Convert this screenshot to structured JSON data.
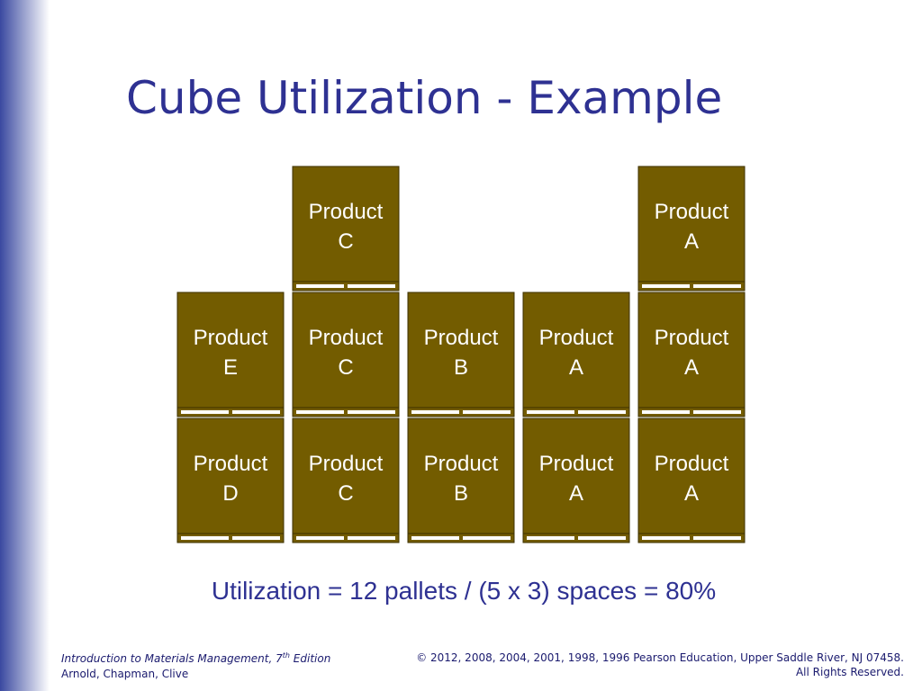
{
  "title": "Cube Utilization - Example",
  "columns": [
    {
      "stack": [
        [
          "Product",
          "D"
        ],
        [
          "Product",
          "E"
        ]
      ]
    },
    {
      "stack": [
        [
          "Product",
          "C"
        ],
        [
          "Product",
          "C"
        ],
        [
          "Product",
          "C"
        ]
      ]
    },
    {
      "stack": [
        [
          "Product",
          "B"
        ],
        [
          "Product",
          "B"
        ]
      ]
    },
    {
      "stack": [
        [
          "Product",
          "A"
        ],
        [
          "Product",
          "A"
        ]
      ]
    },
    {
      "stack": [
        [
          "Product",
          "A"
        ],
        [
          "Product",
          "A"
        ],
        [
          "Product",
          "A"
        ]
      ]
    }
  ],
  "formula": "Utilization = 12 pallets / (5 x 3) spaces = 80%",
  "footer": {
    "left": {
      "book": "Introduction to Materials Management, 7",
      "sup": "th",
      "edition": " Edition",
      "authors": "Arnold, Chapman, Clive"
    },
    "right": {
      "copyright": "© 2012, 2008, 2004, 2001, 1998, 1996 Pearson Education, Upper Saddle River, NJ 07458.",
      "rights": "All Rights Reserved."
    }
  }
}
